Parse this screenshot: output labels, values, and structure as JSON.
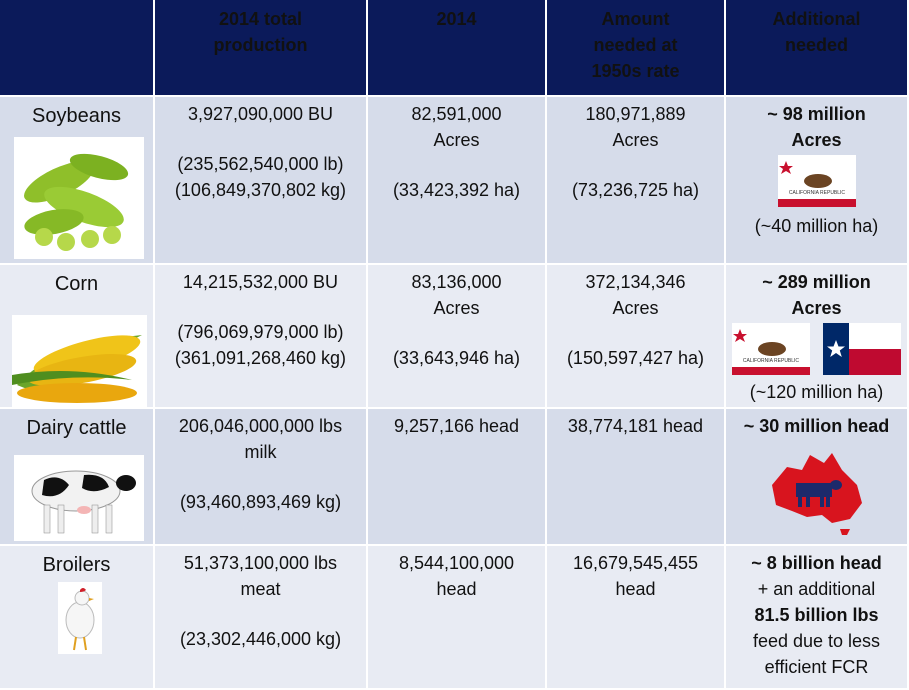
{
  "header": {
    "col1": [
      "2014 total",
      "production"
    ],
    "col2": [
      "2014"
    ],
    "col3": [
      "Amount",
      "needed at",
      "1950s rate"
    ],
    "col4": [
      "Additional",
      "needed"
    ]
  },
  "rows": [
    {
      "name": "Soybeans",
      "production": [
        "3,927,090,000 BU",
        "(235,562,540,000 lb)",
        "(106,849,370,802 kg)"
      ],
      "y2014": [
        "82,591,000",
        "Acres",
        "(33,423,392 ha)"
      ],
      "needed": [
        "180,971,889",
        "Acres",
        "(73,236,725 ha)"
      ],
      "additional": [
        "~ 98 million",
        "Acres",
        "(~40 million ha)"
      ],
      "flag_text": "CALIFORNIA REPUBLIC"
    },
    {
      "name": "Corn",
      "production": [
        "14,215,532,000 BU",
        "(796,069,979,000 lb)",
        "(361,091,268,460 kg)"
      ],
      "y2014": [
        "83,136,000",
        "Acres",
        "(33,643,946 ha)"
      ],
      "needed": [
        "372,134,346",
        "Acres",
        "(150,597,427 ha)"
      ],
      "additional": [
        "~ 289 million",
        "Acres",
        "(~120 million ha)"
      ],
      "flag_text": "CALIFORNIA REPUBLIC"
    },
    {
      "name": "Dairy cattle",
      "production": [
        "206,046,000,000 lbs",
        "milk",
        "(93,460,893,469 kg)"
      ],
      "y2014": [
        "9,257,166 head"
      ],
      "needed": [
        "38,774,181 head"
      ],
      "additional": [
        "~ 30 million head"
      ]
    },
    {
      "name": "Broilers",
      "production": [
        "51,373,100,000 lbs",
        "meat",
        "(23,302,446,000 kg)"
      ],
      "y2014": [
        "8,544,100,000",
        "head"
      ],
      "needed": [
        "16,679,545,455",
        "head"
      ],
      "additional": [
        "~ 8 billion head",
        "+ an additional",
        "81.5 billion lbs",
        "feed due to less",
        "efficient  FCR"
      ]
    }
  ],
  "colors": {
    "header_bg": "#0b1a5a",
    "header_text": "#f2ec1c",
    "row_dark": "#d6dcea",
    "row_light": "#e8ebf3"
  }
}
